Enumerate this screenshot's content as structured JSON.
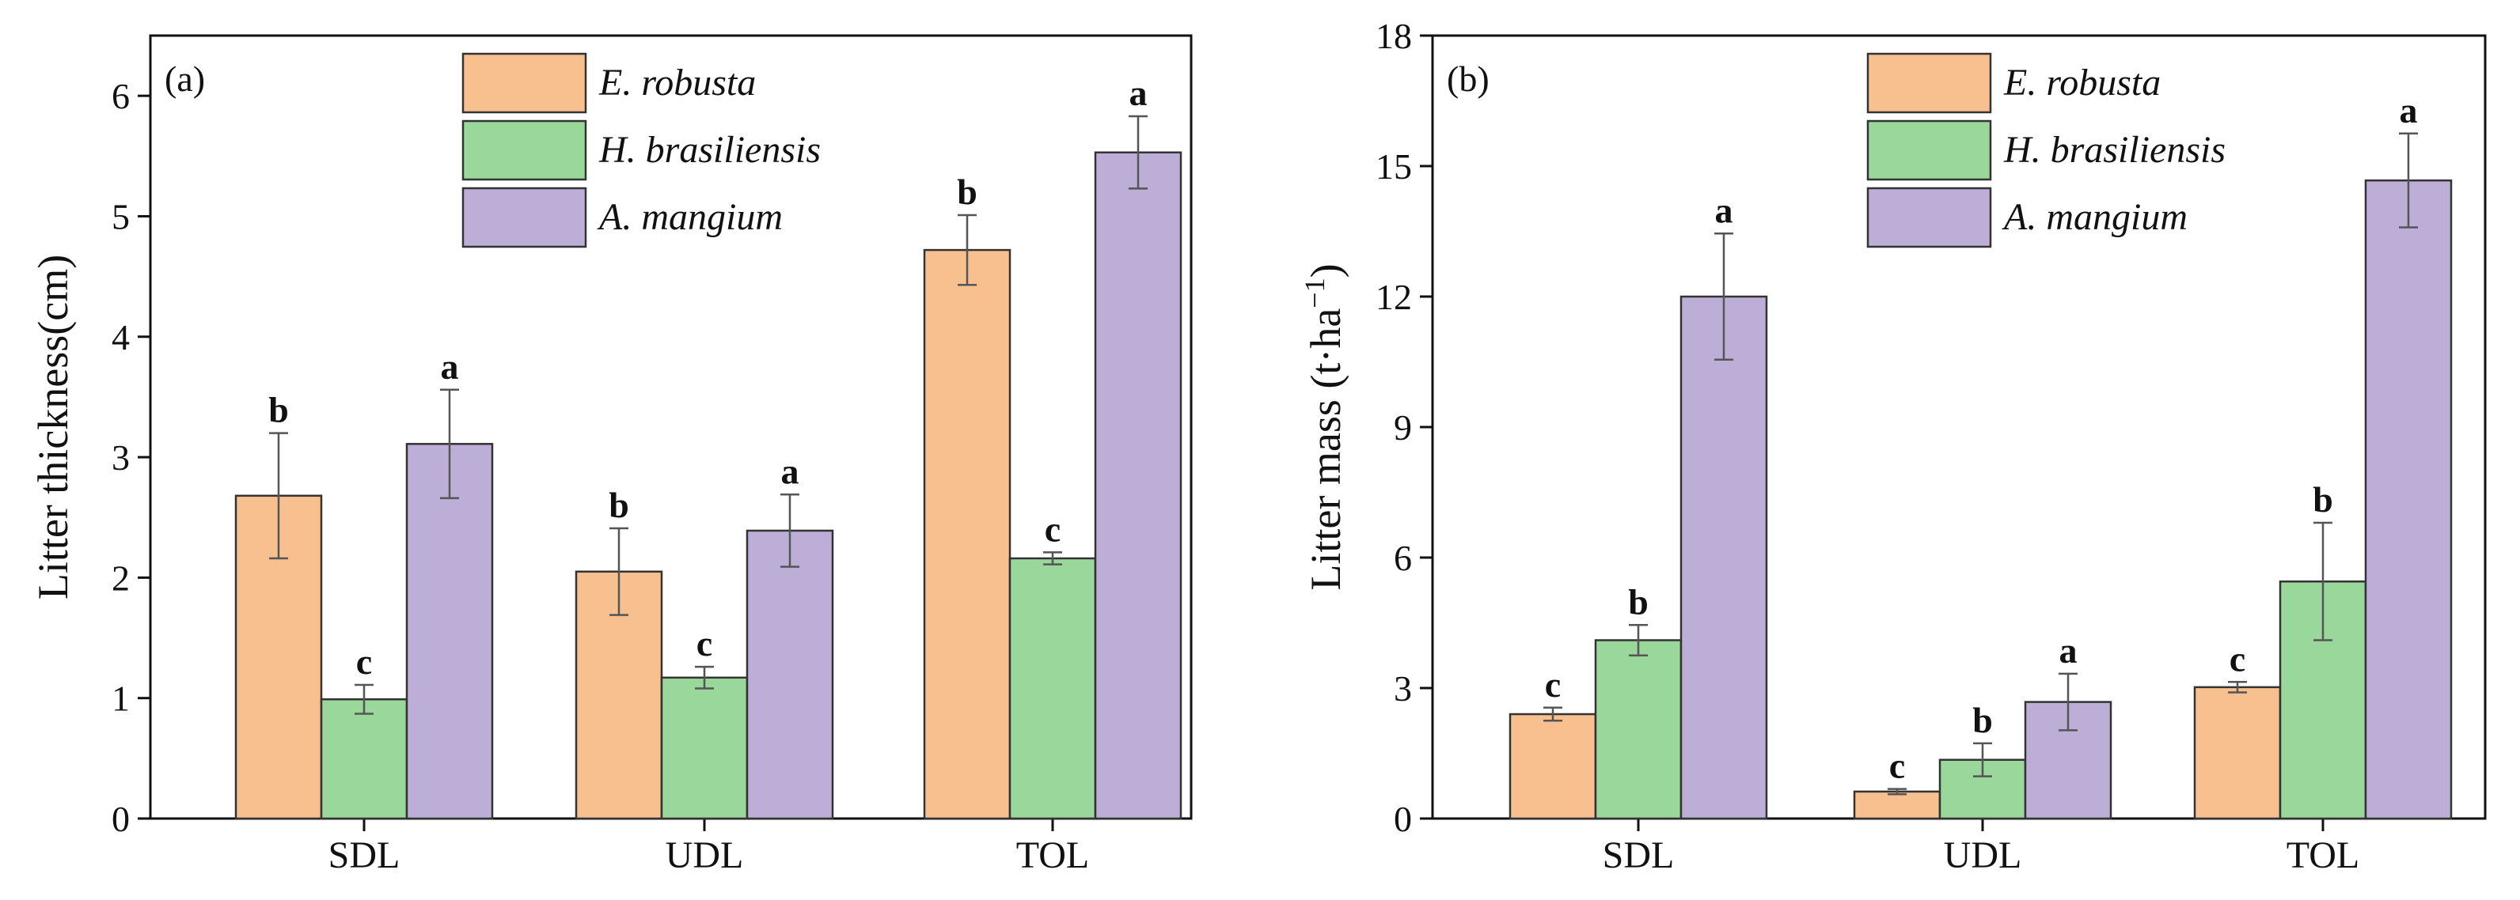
{
  "chart_data": [
    {
      "type": "bar",
      "panel_label": "(a)",
      "title": "",
      "xlabel": "",
      "ylabel": "Litter thickness(cm)",
      "ylim": [
        0,
        6.5
      ],
      "yticks": [
        0,
        1,
        2,
        3,
        4,
        5,
        6
      ],
      "categories": [
        "SDL",
        "UDL",
        "TOL"
      ],
      "legend_position": "top-center",
      "series": [
        {
          "name": "E. robusta",
          "color": "#F9C08F",
          "values": [
            2.68,
            2.05,
            4.72
          ],
          "errors": [
            0.52,
            0.36,
            0.29
          ],
          "labels": [
            "b",
            "b",
            "b"
          ]
        },
        {
          "name": "H. brasiliensis",
          "color": "#9AD79A",
          "values": [
            0.99,
            1.17,
            2.16
          ],
          "errors": [
            0.12,
            0.09,
            0.05
          ],
          "labels": [
            "c",
            "c",
            "c"
          ]
        },
        {
          "name": "A. mangium",
          "color": "#BDAED8",
          "values": [
            3.11,
            2.39,
            5.53
          ],
          "errors": [
            0.45,
            0.3,
            0.3
          ],
          "labels": [
            "a",
            "a",
            "a"
          ]
        }
      ]
    },
    {
      "type": "bar",
      "panel_label": "(b)",
      "title": "",
      "xlabel": "",
      "ylabel": "Litter mass (t·ha",
      "ylabel_sup": "−1",
      "ylabel_end": ")",
      "ylim": [
        0,
        18
      ],
      "yticks": [
        0,
        3,
        6,
        9,
        12,
        15,
        18
      ],
      "categories": [
        "SDL",
        "UDL",
        "TOL"
      ],
      "legend_position": "top-center",
      "series": [
        {
          "name": "E. robusta",
          "color": "#F9C08F",
          "values": [
            2.4,
            0.62,
            3.02
          ],
          "errors": [
            0.15,
            0.06,
            0.12
          ],
          "labels": [
            "c",
            "c",
            "c"
          ]
        },
        {
          "name": "H. brasiliensis",
          "color": "#9AD79A",
          "values": [
            4.1,
            1.35,
            5.45
          ],
          "errors": [
            0.35,
            0.38,
            1.35
          ],
          "labels": [
            "b",
            "b",
            "b"
          ]
        },
        {
          "name": "A. mangium",
          "color": "#BDAED8",
          "values": [
            12.0,
            2.68,
            14.67
          ],
          "errors": [
            1.45,
            0.65,
            1.08
          ],
          "labels": [
            "a",
            "a",
            "a"
          ]
        }
      ]
    }
  ]
}
